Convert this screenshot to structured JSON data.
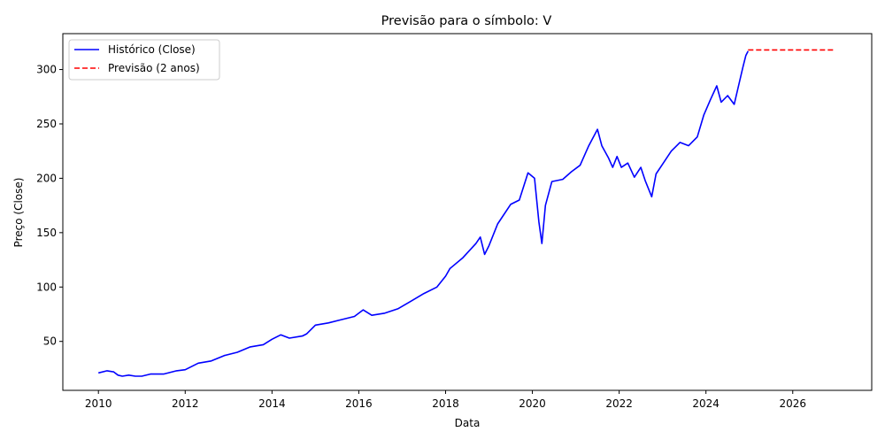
{
  "chart_data": {
    "type": "line",
    "title": "Previsão para o símbolo: V",
    "xlabel": "Data",
    "ylabel": "Preço (Close)",
    "xlim": [
      2009.18,
      2027.82
    ],
    "ylim": [
      5,
      333
    ],
    "x_ticks": [
      2010,
      2012,
      2014,
      2016,
      2018,
      2020,
      2022,
      2024,
      2026
    ],
    "y_ticks": [
      50,
      100,
      150,
      200,
      250,
      300
    ],
    "grid": false,
    "legend_position": "top-left",
    "series": [
      {
        "name": "Histórico (Close)",
        "color": "#0000ff",
        "style": "solid",
        "x": [
          2010.0,
          2010.2,
          2010.35,
          2010.45,
          2010.55,
          2010.7,
          2010.85,
          2011.0,
          2011.2,
          2011.5,
          2011.8,
          2012.0,
          2012.3,
          2012.6,
          2012.9,
          2013.2,
          2013.5,
          2013.8,
          2014.0,
          2014.2,
          2014.4,
          2014.7,
          2014.8,
          2015.0,
          2015.3,
          2015.6,
          2015.9,
          2016.1,
          2016.3,
          2016.6,
          2016.9,
          2017.2,
          2017.5,
          2017.8,
          2018.0,
          2018.1,
          2018.4,
          2018.7,
          2018.8,
          2018.9,
          2019.0,
          2019.2,
          2019.5,
          2019.7,
          2019.9,
          2020.05,
          2020.15,
          2020.22,
          2020.3,
          2020.45,
          2020.7,
          2020.9,
          2021.1,
          2021.3,
          2021.5,
          2021.6,
          2021.75,
          2021.85,
          2021.95,
          2022.05,
          2022.2,
          2022.35,
          2022.5,
          2022.6,
          2022.75,
          2022.85,
          2023.0,
          2023.2,
          2023.4,
          2023.6,
          2023.8,
          2023.95,
          2024.1,
          2024.25,
          2024.35,
          2024.5,
          2024.65,
          2024.75,
          2024.85,
          2024.92,
          2024.97
        ],
        "y": [
          21,
          23,
          22,
          19,
          18,
          19,
          18,
          18,
          20,
          20,
          23,
          24,
          30,
          32,
          37,
          40,
          45,
          47,
          52,
          56,
          53,
          55,
          57,
          65,
          67,
          70,
          73,
          79,
          74,
          76,
          80,
          87,
          94,
          100,
          110,
          117,
          127,
          140,
          146,
          130,
          138,
          158,
          176,
          180,
          205,
          200,
          160,
          140,
          175,
          197,
          199,
          206,
          212,
          230,
          245,
          230,
          219,
          210,
          220,
          210,
          214,
          201,
          210,
          198,
          183,
          204,
          213,
          225,
          233,
          230,
          238,
          258,
          272,
          285,
          270,
          276,
          268,
          285,
          302,
          313,
          317
        ]
      },
      {
        "name": "Previsão (2 anos)",
        "color": "#ff0000",
        "style": "dashed",
        "x": [
          2024.97,
          2026.95
        ],
        "y": [
          318,
          318
        ]
      }
    ]
  }
}
